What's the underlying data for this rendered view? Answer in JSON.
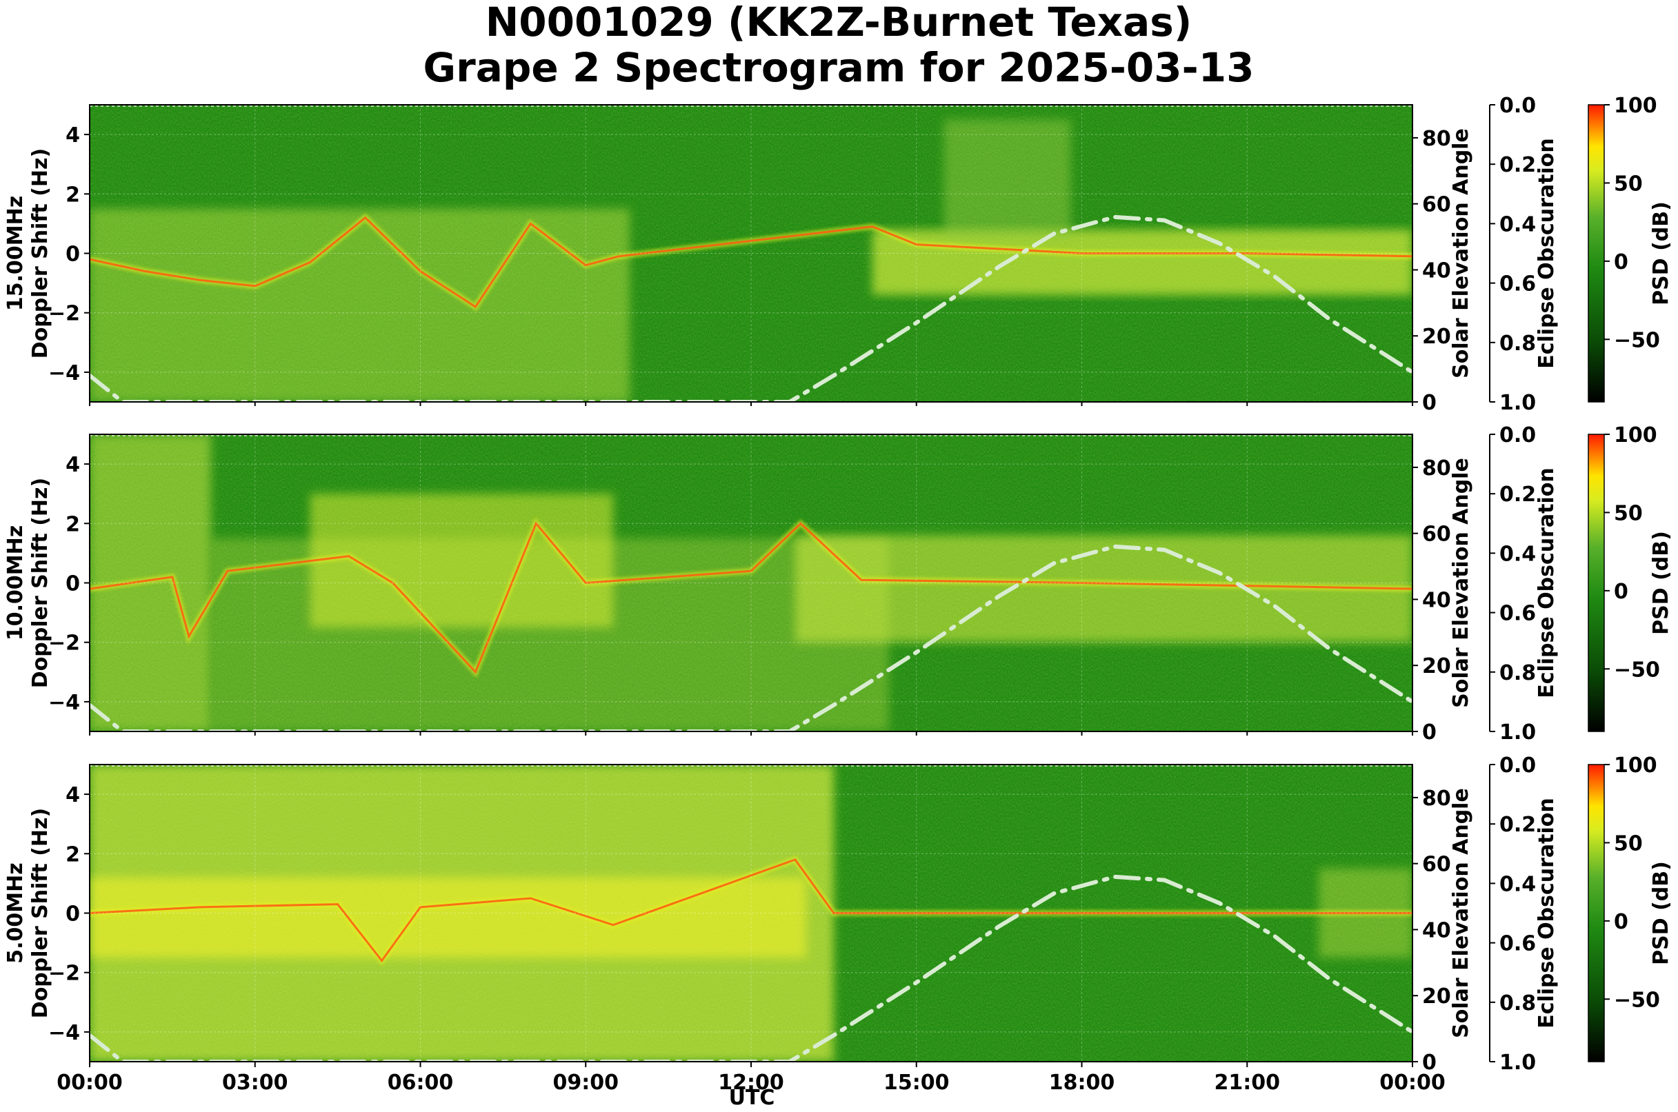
{
  "title_line1": "N0001029 (KK2Z-Burnet Texas)",
  "title_line2": "Grape 2 Spectrogram for 2025-03-13",
  "x_axis_label": "UTC",
  "x_tick_labels": [
    "00:00",
    "03:00",
    "06:00",
    "09:00",
    "12:00",
    "15:00",
    "18:00",
    "21:00",
    "00:00"
  ],
  "y_axis_label": "Doppler Shift (Hz)",
  "y_ticks": [
    4,
    2,
    0,
    -2,
    -4
  ],
  "elevation_label": "Solar Elevation Angle",
  "elevation_ticks": [
    80,
    60,
    40,
    20,
    0
  ],
  "obscuration_label": "Eclipse Obscuration",
  "obscuration_ticks": [
    "0.0",
    "0.2",
    "0.4",
    "0.6",
    "0.8",
    "1.0"
  ],
  "colorbar_label": "PSD (dB)",
  "colorbar_ticks": [
    100,
    50,
    0,
    -50
  ],
  "colors": {
    "background_green": "#1f8a12",
    "signal_yellow": "#e8f020",
    "trace_orange": "#ff5a10",
    "elevation_curve": "#d9ecd2"
  },
  "chart_data": [
    {
      "type": "heatmap",
      "band": "15.00MHz",
      "xlabel": "UTC",
      "ylabel": "Doppler Shift (Hz)",
      "xlim": [
        "00:00",
        "24:00"
      ],
      "ylim": [
        -5,
        5
      ],
      "zlabel": "PSD (dB)",
      "zlim": [
        -90,
        100
      ],
      "secondary_axes": {
        "solar_elevation_angle": {
          "ylim": [
            0,
            90
          ]
        },
        "eclipse_obscuration": {
          "ylim": [
            1.0,
            0.0
          ]
        }
      },
      "dominant_trace_hz": [
        {
          "t": 0.0,
          "f": -0.2
        },
        {
          "t": 1.0,
          "f": -0.6
        },
        {
          "t": 2.0,
          "f": -0.9
        },
        {
          "t": 3.0,
          "f": -1.1
        },
        {
          "t": 4.0,
          "f": -0.3
        },
        {
          "t": 5.0,
          "f": 1.2
        },
        {
          "t": 6.0,
          "f": -0.6
        },
        {
          "t": 7.0,
          "f": -1.8
        },
        {
          "t": 8.0,
          "f": 1.0
        },
        {
          "t": 9.0,
          "f": -0.4
        },
        {
          "t": 9.6,
          "f": -0.1
        },
        {
          "t": 14.2,
          "f": 0.9
        },
        {
          "t": 15.0,
          "f": 0.3
        },
        {
          "t": 18.0,
          "f": 0.0
        },
        {
          "t": 21.0,
          "f": 0.0
        },
        {
          "t": 24.0,
          "f": -0.1
        }
      ]
    },
    {
      "type": "heatmap",
      "band": "10.00MHz",
      "xlabel": "UTC",
      "ylabel": "Doppler Shift (Hz)",
      "xlim": [
        "00:00",
        "24:00"
      ],
      "ylim": [
        -5,
        5
      ],
      "zlabel": "PSD (dB)",
      "zlim": [
        -90,
        100
      ],
      "secondary_axes": {
        "solar_elevation_angle": {
          "ylim": [
            0,
            90
          ]
        },
        "eclipse_obscuration": {
          "ylim": [
            1.0,
            0.0
          ]
        }
      },
      "dominant_trace_hz": [
        {
          "t": 0.0,
          "f": -0.2
        },
        {
          "t": 1.5,
          "f": 0.2
        },
        {
          "t": 1.8,
          "f": -1.8
        },
        {
          "t": 2.5,
          "f": 0.4
        },
        {
          "t": 4.7,
          "f": 0.9
        },
        {
          "t": 5.5,
          "f": 0.0
        },
        {
          "t": 7.0,
          "f": -3.0
        },
        {
          "t": 8.1,
          "f": 2.0
        },
        {
          "t": 9.0,
          "f": 0.0
        },
        {
          "t": 12.0,
          "f": 0.4
        },
        {
          "t": 12.9,
          "f": 2.0
        },
        {
          "t": 14.0,
          "f": 0.1
        },
        {
          "t": 18.0,
          "f": 0.0
        },
        {
          "t": 24.0,
          "f": -0.2
        }
      ]
    },
    {
      "type": "heatmap",
      "band": "5.00MHz",
      "xlabel": "UTC",
      "ylabel": "Doppler Shift (Hz)",
      "xlim": [
        "00:00",
        "24:00"
      ],
      "ylim": [
        -5,
        5
      ],
      "zlabel": "PSD (dB)",
      "zlim": [
        -90,
        100
      ],
      "secondary_axes": {
        "solar_elevation_angle": {
          "ylim": [
            0,
            90
          ]
        },
        "eclipse_obscuration": {
          "ylim": [
            1.0,
            0.0
          ]
        }
      },
      "dominant_trace_hz": [
        {
          "t": 0.0,
          "f": 0.0
        },
        {
          "t": 2.0,
          "f": 0.2
        },
        {
          "t": 4.5,
          "f": 0.3
        },
        {
          "t": 5.3,
          "f": -1.6
        },
        {
          "t": 6.0,
          "f": 0.2
        },
        {
          "t": 8.0,
          "f": 0.5
        },
        {
          "t": 9.5,
          "f": -0.4
        },
        {
          "t": 12.8,
          "f": 1.8
        },
        {
          "t": 13.5,
          "f": 0.0
        },
        {
          "t": 24.0,
          "f": 0.0
        }
      ]
    }
  ],
  "solar_elevation_curve_deg": [
    {
      "t": 0.0,
      "deg": 8
    },
    {
      "t": 0.6,
      "deg": 0
    },
    {
      "t": 12.7,
      "deg": 0
    },
    {
      "t": 13.5,
      "deg": 8
    },
    {
      "t": 15.0,
      "deg": 24
    },
    {
      "t": 16.5,
      "deg": 41
    },
    {
      "t": 17.5,
      "deg": 51
    },
    {
      "t": 18.6,
      "deg": 56
    },
    {
      "t": 19.5,
      "deg": 55
    },
    {
      "t": 20.5,
      "deg": 48
    },
    {
      "t": 21.5,
      "deg": 38
    },
    {
      "t": 22.5,
      "deg": 25
    },
    {
      "t": 24.0,
      "deg": 9
    }
  ]
}
